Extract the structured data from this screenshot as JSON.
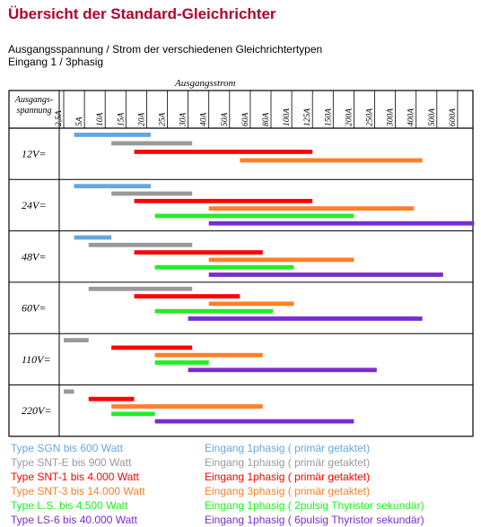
{
  "title": "Übersicht der Standard-Gleichrichter",
  "subtitle": "Ausgangsspannung / Strom der verschiedenen Gleichrichtertypen",
  "subtitle2": "Eingang 1 / 3phasig",
  "chart_data": {
    "type": "gantt",
    "x_title": "Ausgangsstrom",
    "y_header": [
      "Ausgangs-",
      "spannung"
    ],
    "x_ticks": [
      "2,5A",
      "5A",
      "10A",
      "15A",
      "20A",
      "25A",
      "30A",
      "40A",
      "50A",
      "60A",
      "80A",
      "100A",
      "125A",
      "150A",
      "200A",
      "250A",
      "300A",
      "400A",
      "500A",
      "600A"
    ],
    "colors": {
      "SGN": "#66a6e0",
      "SNT-E": "#999999",
      "SNT-1": "#ff0000",
      "SNT-3": "#ff7f27",
      "LS": "#22ee22",
      "LS-6": "#7a2ccf"
    },
    "rows": [
      {
        "label": "12V=",
        "bars": [
          {
            "type": "SGN",
            "from": 0.5,
            "to": 4.2
          },
          {
            "type": "SNT-E",
            "from": 2.3,
            "to": 6.2
          },
          {
            "type": "SNT-1",
            "from": 3.4,
            "to": 12.0
          },
          {
            "type": "SNT-3",
            "from": 8.5,
            "to": 17.3
          }
        ]
      },
      {
        "label": "24V=",
        "bars": [
          {
            "type": "SGN",
            "from": 0.5,
            "to": 4.2
          },
          {
            "type": "SNT-E",
            "from": 2.3,
            "to": 6.2
          },
          {
            "type": "SNT-1",
            "from": 3.4,
            "to": 12.0
          },
          {
            "type": "SNT-3",
            "from": 7.0,
            "to": 16.9
          },
          {
            "type": "LS",
            "from": 4.4,
            "to": 14.0
          },
          {
            "type": "LS-6",
            "from": 7.0,
            "to": 19.8
          }
        ]
      },
      {
        "label": "48V=",
        "bars": [
          {
            "type": "SGN",
            "from": 0.5,
            "to": 2.3
          },
          {
            "type": "SNT-E",
            "from": 1.2,
            "to": 6.2
          },
          {
            "type": "SNT-1",
            "from": 3.4,
            "to": 9.6
          },
          {
            "type": "SNT-3",
            "from": 7.0,
            "to": 14.0
          },
          {
            "type": "LS",
            "from": 4.4,
            "to": 11.1
          },
          {
            "type": "LS-6",
            "from": 7.0,
            "to": 18.3
          }
        ]
      },
      {
        "label": "60V=",
        "bars": [
          {
            "type": "SNT-E",
            "from": 1.2,
            "to": 6.2
          },
          {
            "type": "SNT-1",
            "from": 3.4,
            "to": 8.5
          },
          {
            "type": "SNT-3",
            "from": 7.0,
            "to": 11.1
          },
          {
            "type": "LS",
            "from": 4.4,
            "to": 10.1
          },
          {
            "type": "LS-6",
            "from": 6.0,
            "to": 17.3
          }
        ]
      },
      {
        "label": "110V=",
        "bars": [
          {
            "type": "SNT-E",
            "from": 0.0,
            "to": 1.2
          },
          {
            "type": "SNT-1",
            "from": 2.3,
            "to": 6.2
          },
          {
            "type": "SNT-3",
            "from": 4.4,
            "to": 9.6
          },
          {
            "type": "LS",
            "from": 4.4,
            "to": 7.0
          },
          {
            "type": "LS-6",
            "from": 6.0,
            "to": 15.1
          }
        ]
      },
      {
        "label": "220V=",
        "bars": [
          {
            "type": "SNT-E",
            "from": 0.0,
            "to": 0.5
          },
          {
            "type": "SNT-1",
            "from": 1.2,
            "to": 3.4
          },
          {
            "type": "SNT-3",
            "from": 2.3,
            "to": 9.6
          },
          {
            "type": "LS",
            "from": 2.3,
            "to": 4.4
          },
          {
            "type": "LS-6",
            "from": 4.4,
            "to": 14.0
          }
        ]
      }
    ]
  },
  "legend": [
    {
      "type": "SGN",
      "name": "Type SGN bis 600 Watt",
      "input": "Eingang 1phasig ( primär getaktet)"
    },
    {
      "type": "SNT-E",
      "name": "Type SNT-E bis 900 Watt",
      "input": "Eingang 1phasig ( primär getaktet)"
    },
    {
      "type": "SNT-1",
      "name": "Type SNT-1 bis 4.000 Watt",
      "input": "Eingang 1phasig ( primär getaktet)"
    },
    {
      "type": "SNT-3",
      "name": "Type SNT-3  bis 14.000 Watt",
      "input": "Eingang 3phasig ( primär getaktet)"
    },
    {
      "type": "LS",
      "name": "Type L.S. bis 4.500 Watt",
      "input": "Eingang 1phasig ( 2pulsig Thyristor sekundär)"
    },
    {
      "type": "LS-6",
      "name": "Type LS-6 bis 40.000 Watt",
      "input": "Eingang 1phasig ( 6pulsig Thyristor sekundär)"
    }
  ]
}
